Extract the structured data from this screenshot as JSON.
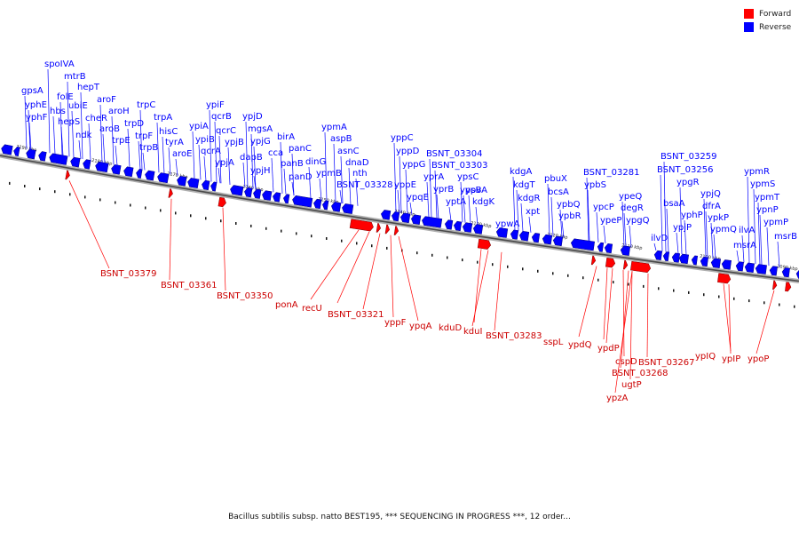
{
  "legend": {
    "forward_label": "Forward",
    "reverse_label": "Reverse",
    "forward_color": "#ff0000",
    "reverse_color": "#0000ff"
  },
  "caption": "Bacillus subtilis subsp. natto BEST195, *** SEQUENCING IN PROGRESS ***, 12 order...",
  "axis": {
    "ticks": [
      "2090 kbp",
      "2100 kbp",
      "2110 kbp",
      "2120 kbp",
      "2130 kbp",
      "2140 kbp",
      "2150 kbp",
      "2160 kbp",
      "2170 kbp",
      "2180 kbp",
      "2190 kbp"
    ]
  },
  "reverse_genes": [
    "gpsA",
    "yphE",
    "yphF",
    "spoIVA",
    "mtrB",
    "folE",
    "hbs",
    "hepT",
    "ubiE",
    "hepS",
    "ndk",
    "cheR",
    "aroF",
    "aroH",
    "aroB",
    "trpE",
    "trpD",
    "trpC",
    "trpF",
    "trpB",
    "trpA",
    "hisC",
    "tyrA",
    "aroE",
    "ypiF",
    "ypiA",
    "ypiB",
    "qcrB",
    "qcrC",
    "qcrA",
    "ypjB",
    "ypjA",
    "ypjD",
    "mgsA",
    "ypjG",
    "dapB",
    "ypjH",
    "birA",
    "cca",
    "panC",
    "panB",
    "panD",
    "dinG",
    "ypmA",
    "aspB",
    "ypmB",
    "asnC",
    "dnaD",
    "nth",
    "BSNT_03328",
    "yppC",
    "yppD",
    "yppG",
    "yppE",
    "ypqE",
    "BSNT_03304",
    "BSNT_03303",
    "yprA",
    "yprB",
    "ypsC",
    "ypsB",
    "yptA",
    "ypvA",
    "kdgK",
    "kdgA",
    "kdgT",
    "kdgR",
    "ypwA",
    "xpt",
    "pbuX",
    "bcsA",
    "ypbQ",
    "ypbR",
    "BSNT_03281",
    "ypbS",
    "ypcP",
    "ypeP",
    "ypeQ",
    "degR",
    "ypgQ",
    "BSNT_03259",
    "BSNT_03256",
    "ypgR",
    "bsaA",
    "ilvD",
    "yphP",
    "ypjP",
    "ypjQ",
    "dfrA",
    "ypkP",
    "ypmQ",
    "ypmR",
    "ypmS",
    "ypmT",
    "ypnP",
    "ypmP",
    "ilvA",
    "msrA",
    "msrB"
  ],
  "forward_genes": [
    "BSNT_03379",
    "BSNT_03361",
    "BSNT_03350",
    "ponA",
    "recU",
    "BSNT_03321",
    "yppF",
    "ypqA",
    "kduD",
    "kduI",
    "BSNT_03283",
    "sspL",
    "ypdQ",
    "ypdP",
    "cspD",
    "BSNT_03268",
    "ugtP",
    "ypzA",
    "BSNT_03267",
    "ypIQ",
    "ypIP",
    "ypoP"
  ]
}
